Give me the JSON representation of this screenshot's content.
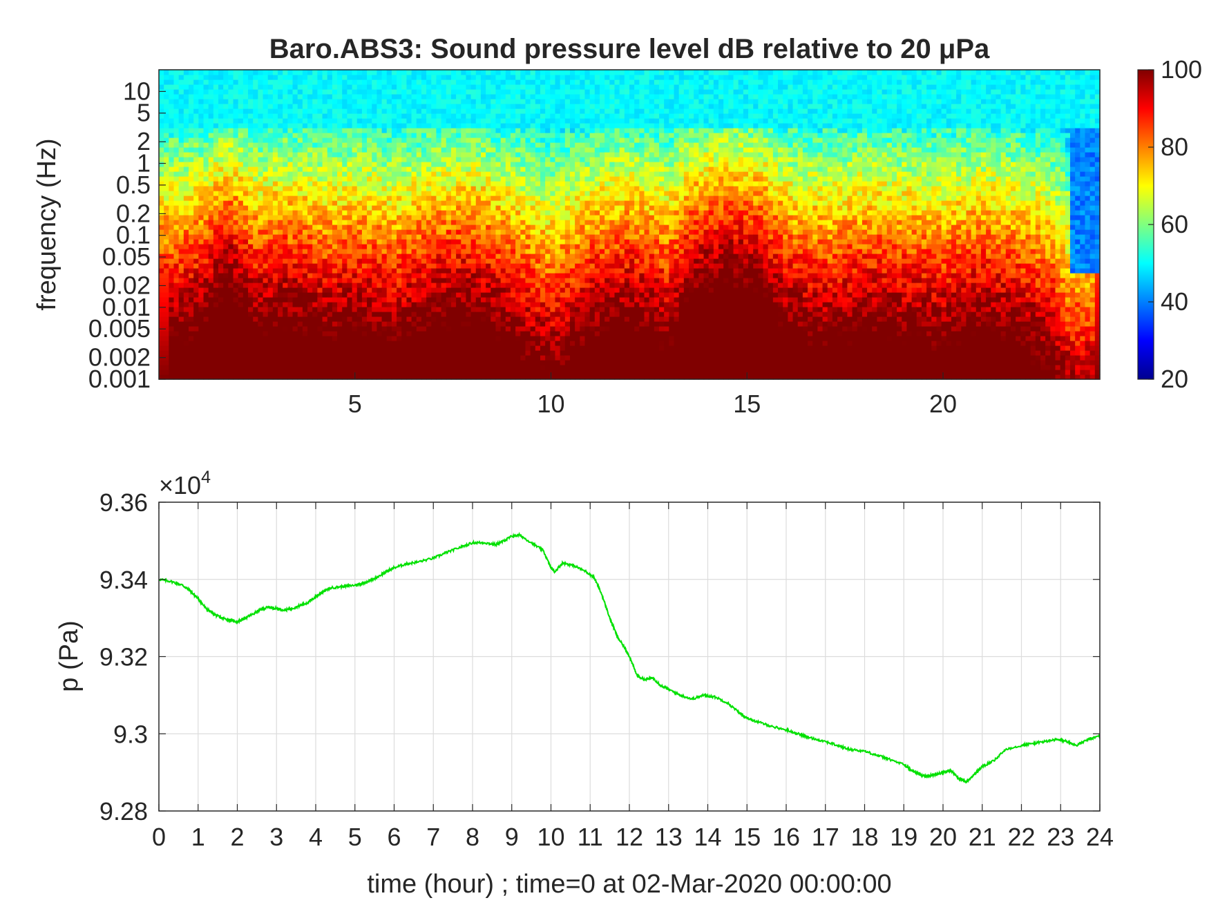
{
  "chart_data": [
    {
      "type": "heatmap",
      "title": "Baro.ABS3: Sound pressure level dB relative to 20 μPa",
      "xlabel": "",
      "ylabel": "frequency (Hz)",
      "xlim": [
        0,
        24
      ],
      "ylim": [
        0.001,
        20
      ],
      "yscale": "log",
      "xticks": [
        5,
        10,
        15,
        20
      ],
      "xtick_labels": [
        "5",
        "10",
        "15",
        "20"
      ],
      "yticks": [
        0.001,
        0.002,
        0.005,
        0.01,
        0.02,
        0.05,
        0.1,
        0.2,
        0.5,
        1,
        2,
        5,
        10
      ],
      "ytick_labels": [
        "0.001",
        "0.002",
        "0.005",
        "0.01",
        "0.02",
        "0.05",
        "0.1",
        "0.2",
        "0.5",
        "1",
        "2",
        "5",
        "10"
      ],
      "colorbar": {
        "ticks": [
          20,
          40,
          60,
          80,
          100
        ],
        "tick_labels": [
          "20",
          "40",
          "60",
          "80",
          "100"
        ],
        "clim": [
          20,
          100
        ],
        "colormap": "jet"
      },
      "grid": false
    },
    {
      "type": "line",
      "title": "",
      "xlabel": "time (hour) ; time=0 at 02-Mar-2020 00:00:00",
      "ylabel": "p (Pa)",
      "exponent_label": "×10",
      "exponent_power": "4",
      "xlim": [
        0,
        24
      ],
      "ylim": [
        92800,
        93600
      ],
      "xticks": [
        0,
        1,
        2,
        3,
        4,
        5,
        6,
        7,
        8,
        9,
        10,
        11,
        12,
        13,
        14,
        15,
        16,
        17,
        18,
        19,
        20,
        21,
        22,
        23,
        24
      ],
      "xtick_labels": [
        "0",
        "1",
        "2",
        "3",
        "4",
        "5",
        "6",
        "7",
        "8",
        "9",
        "10",
        "11",
        "12",
        "13",
        "14",
        "15",
        "16",
        "17",
        "18",
        "19",
        "20",
        "21",
        "22",
        "23",
        "24"
      ],
      "yticks": [
        92800,
        93000,
        93200,
        93400,
        93600
      ],
      "ytick_labels": [
        "9.28",
        "9.3",
        "9.32",
        "9.34",
        "9.36"
      ],
      "grid": true,
      "line_color": "#00e000",
      "series": [
        {
          "x": [
            0,
            0.3,
            0.6,
            0.8,
            1.0,
            1.2,
            1.4,
            1.6,
            1.8,
            2.0,
            2.2,
            2.4,
            2.6,
            2.8,
            3.0,
            3.2,
            3.4,
            3.6,
            3.8,
            4.0,
            4.2,
            4.4,
            4.7,
            5.0,
            5.2,
            5.5,
            5.8,
            6.0,
            6.3,
            6.6,
            7.0,
            7.3,
            7.6,
            8.0,
            8.3,
            8.6,
            8.8,
            9.0,
            9.2,
            9.5,
            9.8,
            10.0,
            10.1,
            10.3,
            10.6,
            10.9,
            11.1,
            11.3,
            11.5,
            11.7,
            11.9,
            12.0,
            12.2,
            12.4,
            12.6,
            12.8,
            13.0,
            13.3,
            13.6,
            13.9,
            14.2,
            14.5,
            14.8,
            15.0,
            15.3,
            15.6,
            16.0,
            16.3,
            16.6,
            17.0,
            17.3,
            17.6,
            18.0,
            18.3,
            18.6,
            19.0,
            19.2,
            19.4,
            19.6,
            19.8,
            20.0,
            20.2,
            20.4,
            20.6,
            20.8,
            21.0,
            21.3,
            21.6,
            22.0,
            22.3,
            22.6,
            22.9,
            23.1,
            23.4,
            23.7,
            24.0
          ],
          "y": [
            93400,
            93395,
            93385,
            93370,
            93350,
            93325,
            93310,
            93300,
            93295,
            93290,
            93300,
            93310,
            93322,
            93328,
            93325,
            93320,
            93325,
            93332,
            93340,
            93355,
            93370,
            93378,
            93382,
            93385,
            93390,
            93402,
            93420,
            93430,
            93440,
            93445,
            93455,
            93468,
            93480,
            93495,
            93495,
            93490,
            93500,
            93512,
            93515,
            93495,
            93475,
            93430,
            93420,
            93443,
            93435,
            93420,
            93405,
            93360,
            93300,
            93250,
            93220,
            93200,
            93150,
            93140,
            93145,
            93125,
            93115,
            93100,
            93090,
            93100,
            93095,
            93080,
            93055,
            93040,
            93030,
            93020,
            93010,
            93000,
            92990,
            92980,
            92970,
            92960,
            92955,
            92945,
            92935,
            92920,
            92905,
            92895,
            92890,
            92895,
            92900,
            92905,
            92885,
            92875,
            92895,
            92915,
            92930,
            92960,
            92970,
            92975,
            92980,
            92985,
            92982,
            92970,
            92985,
            92995
          ]
        }
      ]
    }
  ]
}
